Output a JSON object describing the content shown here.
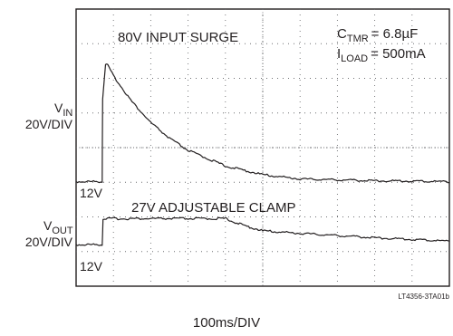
{
  "chart_data": {
    "type": "line",
    "title": "",
    "grid": true,
    "xlabel": "100ms/DIV",
    "x_divisions": 10,
    "y_divisions": 8,
    "figure_id": "LT4356-3TA01b",
    "conditions": [
      {
        "text": "C",
        "subscript": "TMR",
        "value": "= 6.8µF"
      },
      {
        "text": "I",
        "subscript": "LOAD",
        "value": "= 500mA"
      }
    ],
    "annotations": {
      "vin_event": "80V INPUT SURGE",
      "vout_event": "27V ADJUSTABLE CLAMP"
    },
    "channels": [
      {
        "name": "V",
        "subscript": "IN",
        "scale": "20V/DIV",
        "baseline_label": "12V",
        "x_ms": [
          0,
          70,
          71,
          79,
          85,
          100,
          150,
          200,
          250,
          300,
          400,
          500,
          600,
          800,
          1000
        ],
        "y_v": [
          12,
          12,
          60,
          80,
          79,
          73,
          58,
          46,
          37,
          30,
          21,
          16,
          13.5,
          12.5,
          12
        ]
      },
      {
        "name": "V",
        "subscript": "OUT",
        "scale": "20V/DIV",
        "baseline_label": "12V",
        "x_ms": [
          0,
          70,
          72,
          80,
          200,
          300,
          400,
          450,
          500,
          600,
          800,
          1000
        ],
        "y_v": [
          12,
          12,
          27,
          27,
          27,
          27,
          27,
          23,
          20,
          18.5,
          16,
          14
        ]
      }
    ]
  }
}
